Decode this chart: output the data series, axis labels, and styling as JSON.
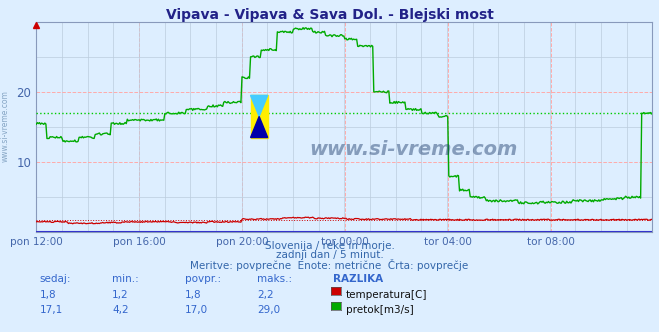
{
  "title": "Vipava - Vipava & Sava Dol. - Blejski most",
  "bg_color": "#ddeeff",
  "plot_bg_color": "#ddeeff",
  "grid_color_major": "#ffaaaa",
  "grid_color_minor": "#bbccdd",
  "tick_color": "#4466aa",
  "ylabel_left_range": [
    0,
    30
  ],
  "yticks": [
    10,
    20
  ],
  "xtick_labels": [
    "pon 12:00",
    "pon 16:00",
    "pon 20:00",
    "tor 00:00",
    "tor 04:00",
    "tor 08:00"
  ],
  "xtick_positions": [
    0,
    96,
    192,
    288,
    384,
    480
  ],
  "total_points": 576,
  "temp_color": "#cc0000",
  "flow_color": "#00aa00",
  "flow_avg_color": "#00cc00",
  "flow_avg_value": 17.0,
  "temp_avg_value": 1.8,
  "watermark_text": "www.si-vreme.com",
  "watermark_color": "#1a3a6a",
  "subtitle1": "Slovenija / reke in morje.",
  "subtitle2": "zadnji dan / 5 minut.",
  "subtitle3": "Meritve: povprečne  Enote: metrične  Črta: povprečje",
  "table_headers": [
    "sedaj:",
    "min.:",
    "povpr.:",
    "maks.:",
    "RAZLIKA"
  ],
  "temp_row": [
    "1,8",
    "1,2",
    "1,8",
    "2,2",
    "temperatura[C]"
  ],
  "flow_row": [
    "17,1",
    "4,2",
    "17,0",
    "29,0",
    "pretok[m3/s]"
  ],
  "text_color_blue": "#3366cc",
  "side_label": "www.si-vreme.com"
}
